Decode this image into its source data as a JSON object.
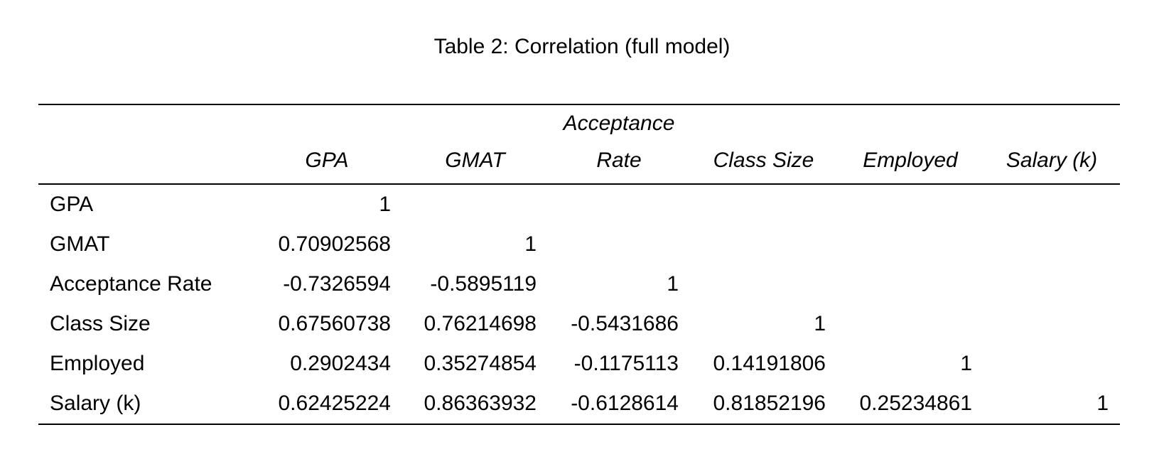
{
  "title": "Table 2: Correlation (full model)",
  "columns": [
    "GPA",
    "GMAT",
    "Acceptance Rate",
    "Class Size",
    "Employed",
    "Salary (k)"
  ],
  "rows": [
    {
      "label": "GPA",
      "values": [
        "1",
        "",
        "",
        "",
        "",
        ""
      ]
    },
    {
      "label": "GMAT",
      "values": [
        "0.70902568",
        "1",
        "",
        "",
        "",
        ""
      ]
    },
    {
      "label": "Acceptance Rate",
      "values": [
        "-0.7326594",
        "-0.5895119",
        "1",
        "",
        "",
        ""
      ]
    },
    {
      "label": "Class Size",
      "values": [
        "0.67560738",
        "0.76214698",
        "-0.5431686",
        "1",
        "",
        ""
      ]
    },
    {
      "label": "Employed",
      "values": [
        "0.2902434",
        "0.35274854",
        "-0.1175113",
        "0.14191806",
        "1",
        ""
      ]
    },
    {
      "label": "Salary (k)",
      "values": [
        "0.62425224",
        "0.86363932",
        "-0.6128614",
        "0.81852196",
        "0.25234861",
        "1"
      ]
    }
  ]
}
